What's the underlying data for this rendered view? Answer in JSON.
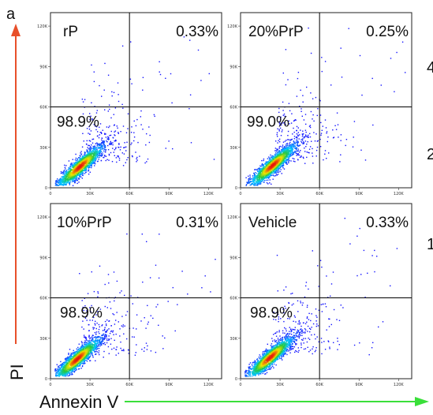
{
  "figure": {
    "panel_letter": "a",
    "y_axis_label": "PI",
    "x_axis_label": "Annexin V",
    "edge_digits": [
      "4",
      "2",
      "1"
    ],
    "colors": {
      "y_arrow": "#e8502a",
      "x_arrow": "#3adf3a",
      "quadrant_line": "#000000"
    }
  },
  "chart_data": [
    {
      "type": "scatter",
      "title": "rP",
      "x_ticks": [
        "0",
        "30K",
        "60K",
        "90K",
        "120K"
      ],
      "y_ticks": [
        "0",
        "30K",
        "60K",
        "90K",
        "120K"
      ],
      "xlim": [
        0,
        130000
      ],
      "ylim": [
        0,
        130000
      ],
      "gate": {
        "x": 60000,
        "y": 60000
      },
      "quadrants": {
        "upper_right": "0.33%",
        "lower_left": "98.9%"
      },
      "density_colormap": [
        "blue",
        "cyan",
        "green",
        "yellow",
        "red"
      ],
      "population_center": {
        "x": 22000,
        "y": 16000
      }
    },
    {
      "type": "scatter",
      "title": "20%PrP",
      "x_ticks": [
        "0",
        "30K",
        "60K",
        "90K",
        "120K"
      ],
      "y_ticks": [
        "0",
        "30K",
        "60K",
        "90K",
        "120K"
      ],
      "xlim": [
        0,
        130000
      ],
      "ylim": [
        0,
        130000
      ],
      "gate": {
        "x": 60000,
        "y": 60000
      },
      "quadrants": {
        "upper_right": "0.25%",
        "lower_left": "99.0%"
      },
      "density_colormap": [
        "blue",
        "cyan",
        "green",
        "yellow",
        "red"
      ],
      "population_center": {
        "x": 24000,
        "y": 17000
      }
    },
    {
      "type": "scatter",
      "title": "10%PrP",
      "x_ticks": [
        "0",
        "30K",
        "60K",
        "90K",
        "120K"
      ],
      "y_ticks": [
        "0",
        "30K",
        "60K",
        "90K",
        "120K"
      ],
      "xlim": [
        0,
        130000
      ],
      "ylim": [
        0,
        130000
      ],
      "gate": {
        "x": 60000,
        "y": 60000
      },
      "quadrants": {
        "upper_right": "0.31%",
        "lower_left": "98.9%"
      },
      "density_colormap": [
        "blue",
        "cyan",
        "green",
        "yellow",
        "red"
      ],
      "population_center": {
        "x": 20000,
        "y": 15000
      }
    },
    {
      "type": "scatter",
      "title": "Vehicle",
      "x_ticks": [
        "0",
        "30K",
        "60K",
        "90K",
        "120K"
      ],
      "y_ticks": [
        "0",
        "30K",
        "60K",
        "90K",
        "120K"
      ],
      "xlim": [
        0,
        130000
      ],
      "ylim": [
        0,
        130000
      ],
      "gate": {
        "x": 60000,
        "y": 60000
      },
      "quadrants": {
        "upper_right": "0.33%",
        "lower_left": "98.9%"
      },
      "density_colormap": [
        "blue",
        "cyan",
        "green",
        "yellow",
        "red"
      ],
      "population_center": {
        "x": 22000,
        "y": 16000
      }
    }
  ]
}
